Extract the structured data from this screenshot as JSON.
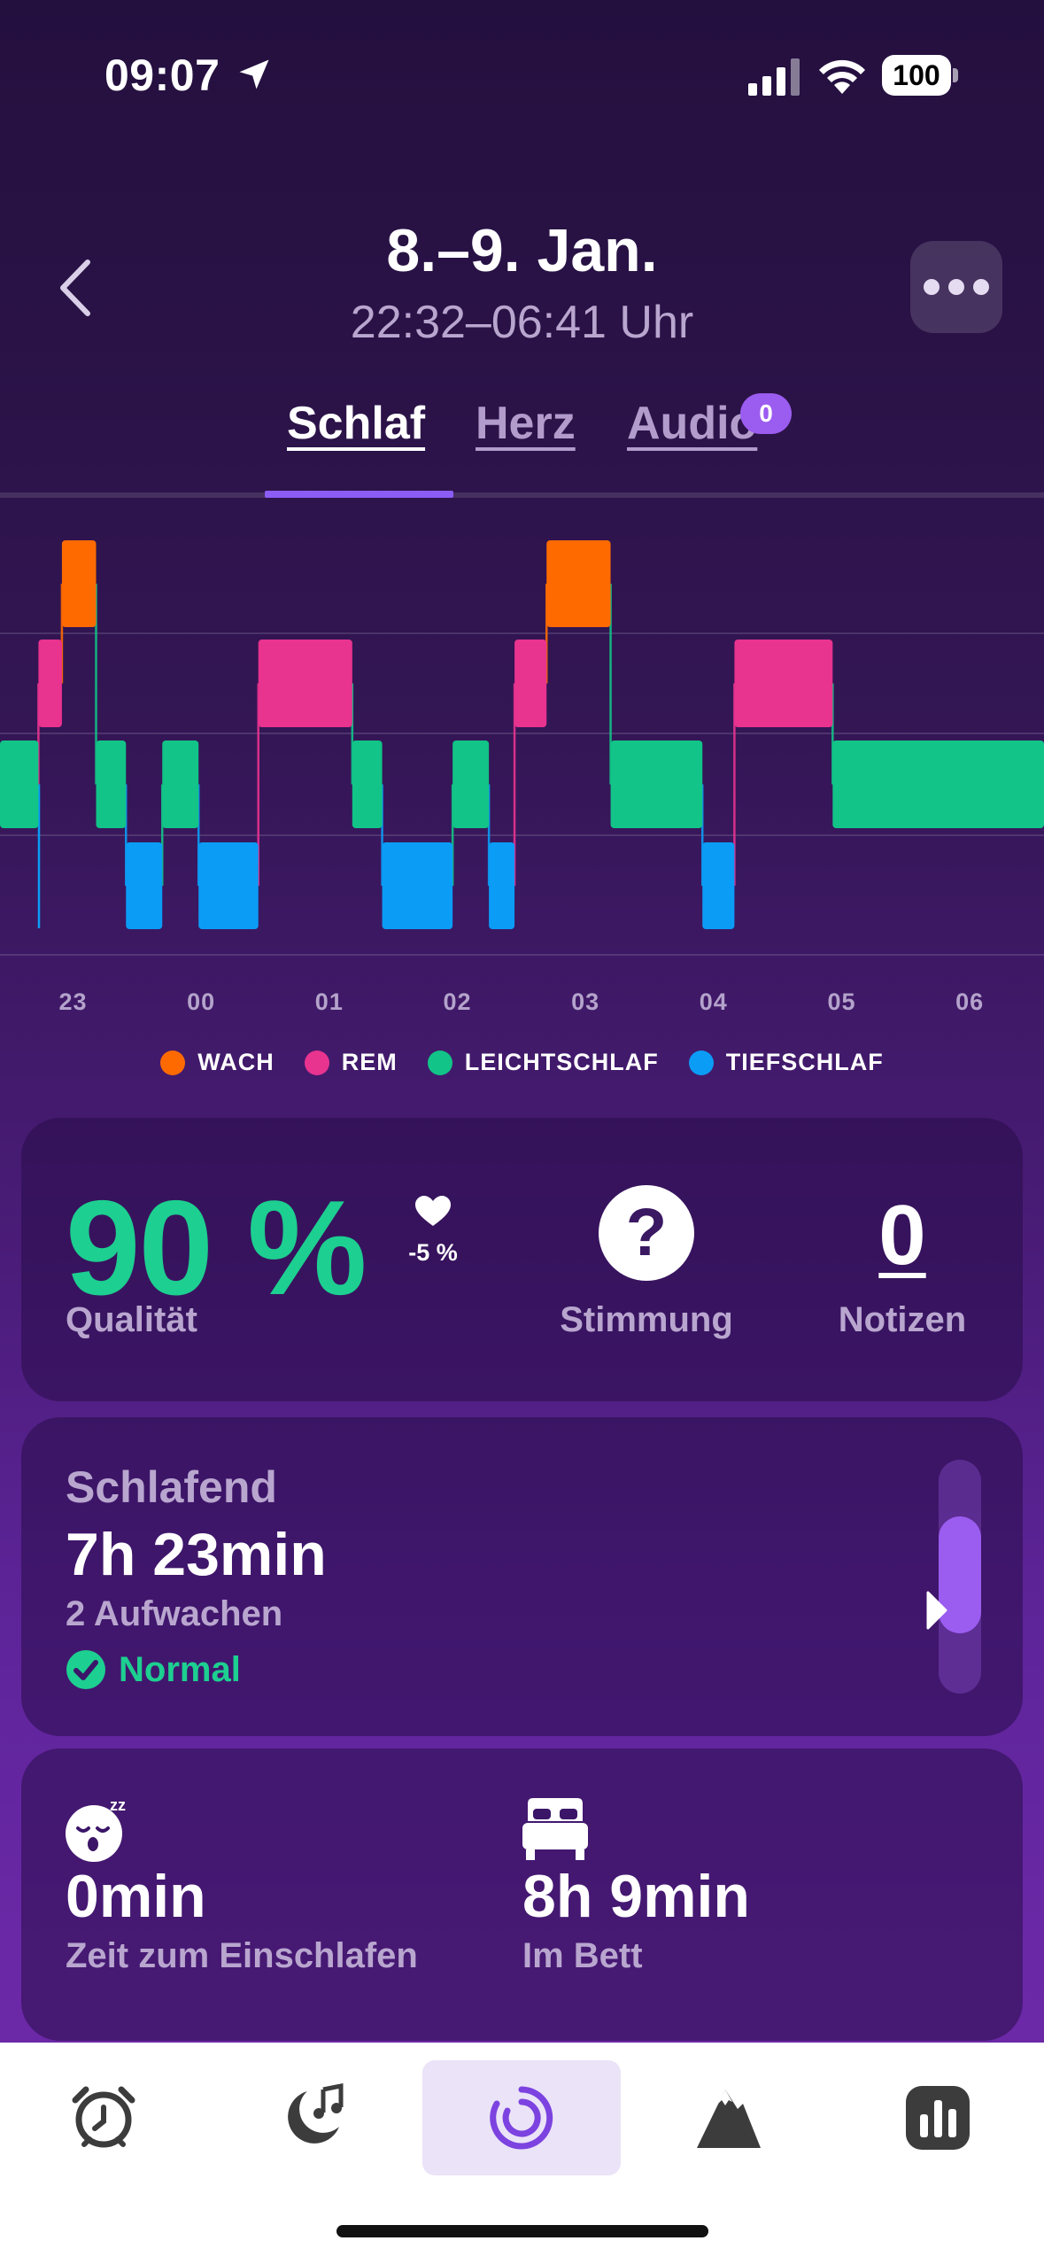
{
  "status": {
    "time": "09:07",
    "battery": "100"
  },
  "header": {
    "title": "8.–9. Jan.",
    "subtitle": "22:32–06:41 Uhr"
  },
  "tabs": [
    {
      "label": "Schlaf"
    },
    {
      "label": "Herz"
    },
    {
      "label": "Audio",
      "badge": "0"
    }
  ],
  "chart_data": {
    "type": "bar",
    "stages": [
      "WACH",
      "REM",
      "LEICHTSCHLAF",
      "TIEFSCHLAF"
    ],
    "x_ticks": [
      "23",
      "00",
      "01",
      "02",
      "03",
      "04",
      "05",
      "06"
    ],
    "colors": {
      "WACH": "#ff6a00",
      "REM": "#e8338f",
      "LEICHTSCHLAF": "#12c487",
      "TIEFSCHLAF": "#0b9cf6"
    },
    "segments": [
      {
        "stage": "LEICHTSCHLAF",
        "start": "22:32",
        "end": "22:50"
      },
      {
        "stage": "REM",
        "start": "22:50",
        "end": "23:01"
      },
      {
        "stage": "WACH",
        "start": "23:01",
        "end": "23:17"
      },
      {
        "stage": "LEICHTSCHLAF",
        "start": "23:17",
        "end": "23:31"
      },
      {
        "stage": "TIEFSCHLAF",
        "start": "23:31",
        "end": "23:48"
      },
      {
        "stage": "LEICHTSCHLAF",
        "start": "23:48",
        "end": "00:05"
      },
      {
        "stage": "TIEFSCHLAF",
        "start": "00:05",
        "end": "00:33"
      },
      {
        "stage": "REM",
        "start": "00:33",
        "end": "01:17"
      },
      {
        "stage": "LEICHTSCHLAF",
        "start": "01:17",
        "end": "01:31"
      },
      {
        "stage": "TIEFSCHLAF",
        "start": "01:31",
        "end": "02:04"
      },
      {
        "stage": "LEICHTSCHLAF",
        "start": "02:04",
        "end": "02:21"
      },
      {
        "stage": "TIEFSCHLAF",
        "start": "02:21",
        "end": "02:33"
      },
      {
        "stage": "REM",
        "start": "02:33",
        "end": "02:48"
      },
      {
        "stage": "WACH",
        "start": "02:48",
        "end": "03:18"
      },
      {
        "stage": "LEICHTSCHLAF",
        "start": "03:18",
        "end": "04:01"
      },
      {
        "stage": "TIEFSCHLAF",
        "start": "04:01",
        "end": "04:16"
      },
      {
        "stage": "REM",
        "start": "04:16",
        "end": "05:02"
      },
      {
        "stage": "LEICHTSCHLAF",
        "start": "05:02",
        "end": "06:41"
      }
    ]
  },
  "legend": [
    {
      "label": "WACH",
      "color": "#ff6a00"
    },
    {
      "label": "REM",
      "color": "#e8338f"
    },
    {
      "label": "LEICHTSCHLAF",
      "color": "#12c487"
    },
    {
      "label": "TIEFSCHLAF",
      "color": "#0b9cf6"
    }
  ],
  "quality": {
    "value": "90 %",
    "label": "Qualität",
    "trend": "-5 %"
  },
  "mood": {
    "icon": "?",
    "label": "Stimmung"
  },
  "notes": {
    "value": "0",
    "label": "Notizen"
  },
  "sleep": {
    "title": "Schlafend",
    "duration": "7h 23min",
    "wakes": "2 Aufwachen",
    "status": "Normal",
    "gauge_level": 0.55
  },
  "stats": {
    "fall_asleep": {
      "value": "0min",
      "label": "Zeit zum Einschlafen"
    },
    "in_bed": {
      "value": "8h 9min",
      "label": "Im Bett"
    }
  },
  "tabbar": {
    "items": [
      "alarm-clock-icon",
      "moon-music-icon",
      "sleep-tracker-icon",
      "mountain-icon",
      "statistics-icon"
    ],
    "active_index": 2
  }
}
